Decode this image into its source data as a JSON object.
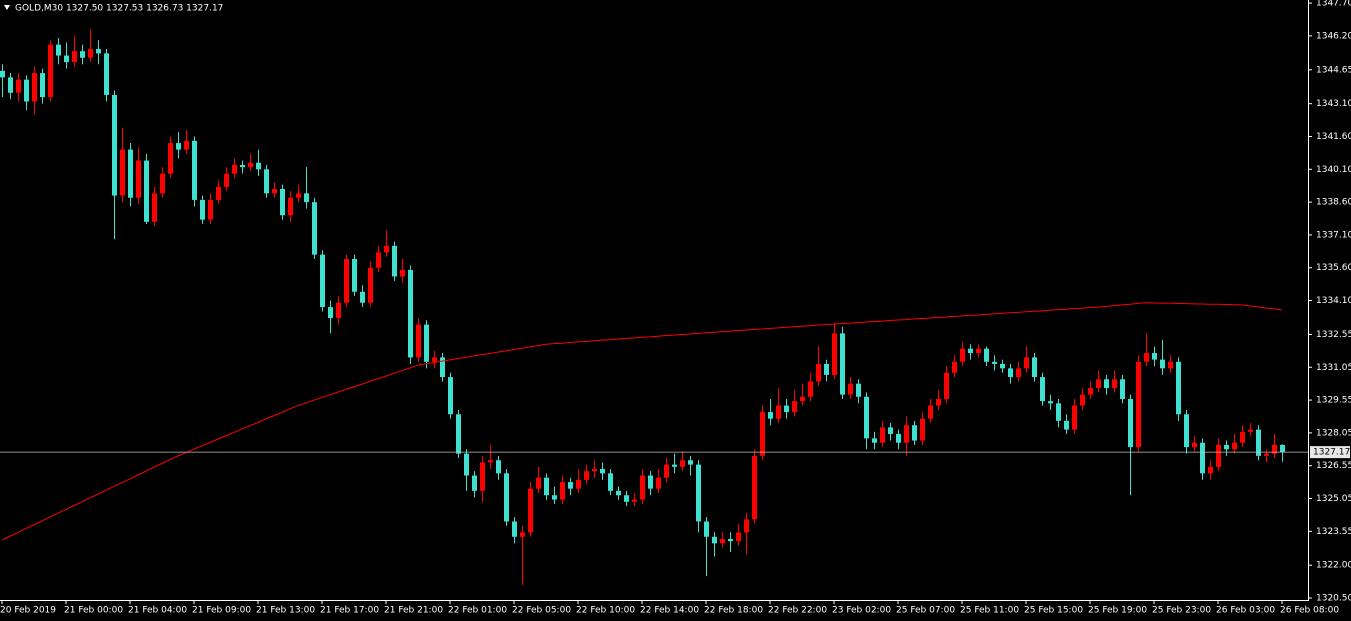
{
  "chart_data": {
    "type": "candlestick",
    "title": "GOLD,M30 1327.50 1327.53 1326.73 1327.17",
    "up_color": "#ff0000",
    "down_color": "#40e0d0",
    "ma_color": "#ff0000",
    "grid": false,
    "ylim": [
      1320.41,
      1347.84
    ],
    "yticks": [
      {
        "value": 1347.7,
        "label": "1347.70"
      },
      {
        "value": 1346.2,
        "label": "1346.20"
      },
      {
        "value": 1344.65,
        "label": "1344.65"
      },
      {
        "value": 1343.1,
        "label": "1343.10"
      },
      {
        "value": 1341.6,
        "label": "1341.60"
      },
      {
        "value": 1340.1,
        "label": "1340.10"
      },
      {
        "value": 1338.6,
        "label": "1338.60"
      },
      {
        "value": 1337.1,
        "label": "1337.10"
      },
      {
        "value": 1335.6,
        "label": "1335.60"
      },
      {
        "value": 1334.1,
        "label": "1334.10"
      },
      {
        "value": 1332.55,
        "label": "1332.55"
      },
      {
        "value": 1331.05,
        "label": "1331.05"
      },
      {
        "value": 1329.55,
        "label": "1329.55"
      },
      {
        "value": 1328.05,
        "label": "1328.05"
      },
      {
        "value": 1326.55,
        "label": "1326.55"
      },
      {
        "value": 1325.05,
        "label": "1325.05"
      },
      {
        "value": 1323.55,
        "label": "1323.55"
      },
      {
        "value": 1322.0,
        "label": "1322.00"
      },
      {
        "value": 1320.5,
        "label": "1320.50"
      }
    ],
    "last_price": 1327.17,
    "categories": [
      "20 Feb 2019",
      null,
      null,
      null,
      null,
      null,
      null,
      null,
      "21 Feb 00:00",
      null,
      null,
      null,
      null,
      null,
      null,
      null,
      "21 Feb 04:00",
      null,
      null,
      null,
      null,
      null,
      null,
      null,
      "21 Feb 09:00",
      null,
      null,
      null,
      null,
      null,
      null,
      null,
      "21 Feb 13:00",
      null,
      null,
      null,
      null,
      null,
      null,
      null,
      "21 Feb 17:00",
      null,
      null,
      null,
      null,
      null,
      null,
      null,
      "21 Feb 21:00",
      null,
      null,
      null,
      null,
      null,
      null,
      null,
      "22 Feb 01:00",
      null,
      null,
      null,
      null,
      null,
      null,
      null,
      "22 Feb 05:00",
      null,
      null,
      null,
      null,
      null,
      null,
      null,
      "22 Feb 10:00",
      null,
      null,
      null,
      null,
      null,
      null,
      null,
      "22 Feb 14:00",
      null,
      null,
      null,
      null,
      null,
      null,
      null,
      "22 Feb 18:00",
      null,
      null,
      null,
      null,
      null,
      null,
      null,
      "22 Feb 22:00",
      null,
      null,
      null,
      null,
      null,
      null,
      null,
      "23 Feb 02:00",
      null,
      null,
      null,
      null,
      null,
      null,
      null,
      "25 Feb 07:00",
      null,
      null,
      null,
      null,
      null,
      null,
      null,
      "25 Feb 11:00",
      null,
      null,
      null,
      null,
      null,
      null,
      null,
      "25 Feb 15:00",
      null,
      null,
      null,
      null,
      null,
      null,
      null,
      "25 Feb 19:00",
      null,
      null,
      null,
      null,
      null,
      null,
      null,
      "25 Feb 23:00",
      null,
      null,
      null,
      null,
      null,
      null,
      null,
      "26 Feb 03:00",
      null,
      null,
      null,
      null,
      null,
      null,
      null,
      "26 Feb 08:00"
    ],
    "ohlc": [
      [
        1344.6,
        1344.9,
        1343.4,
        1344.3
      ],
      [
        1344.3,
        1344.5,
        1343.3,
        1343.6
      ],
      [
        1343.6,
        1344.5,
        1343.2,
        1344.2
      ],
      [
        1344.2,
        1344.4,
        1342.8,
        1343.2
      ],
      [
        1343.2,
        1344.8,
        1342.6,
        1344.5
      ],
      [
        1344.5,
        1344.7,
        1343.1,
        1343.4
      ],
      [
        1343.4,
        1346.0,
        1343.2,
        1345.8
      ],
      [
        1345.8,
        1346.1,
        1344.9,
        1345.3
      ],
      [
        1345.3,
        1345.9,
        1344.7,
        1345.0
      ],
      [
        1345.0,
        1346.2,
        1344.8,
        1345.5
      ],
      [
        1345.5,
        1345.8,
        1344.9,
        1345.2
      ],
      [
        1345.2,
        1346.5,
        1345.0,
        1345.6
      ],
      [
        1345.6,
        1346.0,
        1344.9,
        1345.4
      ],
      [
        1345.4,
        1345.6,
        1343.2,
        1343.5
      ],
      [
        1343.5,
        1343.7,
        1336.9,
        1338.9
      ],
      [
        1338.9,
        1342.0,
        1338.6,
        1341.0
      ],
      [
        1341.0,
        1341.3,
        1338.4,
        1338.8
      ],
      [
        1338.8,
        1341.1,
        1338.5,
        1340.5
      ],
      [
        1340.5,
        1340.8,
        1337.6,
        1337.7
      ],
      [
        1337.7,
        1339.3,
        1337.5,
        1339.0
      ],
      [
        1339.0,
        1340.2,
        1338.8,
        1339.9
      ],
      [
        1339.9,
        1341.6,
        1339.7,
        1341.3
      ],
      [
        1341.3,
        1341.8,
        1340.6,
        1341.0
      ],
      [
        1341.0,
        1341.9,
        1340.8,
        1341.4
      ],
      [
        1341.4,
        1341.6,
        1338.4,
        1338.7
      ],
      [
        1338.7,
        1338.9,
        1337.6,
        1337.8
      ],
      [
        1337.8,
        1339.0,
        1337.6,
        1338.7
      ],
      [
        1338.7,
        1339.6,
        1338.5,
        1339.3
      ],
      [
        1339.3,
        1340.2,
        1339.1,
        1339.9
      ],
      [
        1339.9,
        1340.6,
        1339.7,
        1340.3
      ],
      [
        1340.3,
        1340.5,
        1339.9,
        1340.2
      ],
      [
        1340.2,
        1340.8,
        1340.0,
        1340.4
      ],
      [
        1340.4,
        1341.0,
        1339.8,
        1340.1
      ],
      [
        1340.1,
        1340.3,
        1338.8,
        1339.0
      ],
      [
        1339.0,
        1339.5,
        1338.8,
        1339.2
      ],
      [
        1339.2,
        1339.4,
        1337.8,
        1338.0
      ],
      [
        1338.0,
        1339.1,
        1337.7,
        1338.8
      ],
      [
        1338.8,
        1339.4,
        1338.6,
        1339.0
      ],
      [
        1339.0,
        1340.2,
        1338.3,
        1338.6
      ],
      [
        1338.6,
        1338.8,
        1336.0,
        1336.2
      ],
      [
        1336.2,
        1336.4,
        1333.6,
        1333.8
      ],
      [
        1333.8,
        1334.1,
        1332.6,
        1333.3
      ],
      [
        1333.3,
        1334.3,
        1333.0,
        1334.0
      ],
      [
        1334.0,
        1336.2,
        1333.8,
        1336.0
      ],
      [
        1336.0,
        1336.2,
        1334.3,
        1334.5
      ],
      [
        1334.5,
        1334.8,
        1333.8,
        1334.0
      ],
      [
        1334.0,
        1335.9,
        1333.8,
        1335.6
      ],
      [
        1335.6,
        1336.6,
        1335.4,
        1336.3
      ],
      [
        1336.3,
        1337.3,
        1336.1,
        1336.6
      ],
      [
        1336.6,
        1336.8,
        1335.0,
        1335.2
      ],
      [
        1335.2,
        1336.0,
        1334.9,
        1335.5
      ],
      [
        1335.5,
        1335.7,
        1331.2,
        1331.5
      ],
      [
        1331.5,
        1333.3,
        1331.3,
        1333.0
      ],
      [
        1333.0,
        1333.2,
        1331.0,
        1331.3
      ],
      [
        1331.3,
        1331.8,
        1331.0,
        1331.5
      ],
      [
        1331.5,
        1331.7,
        1330.4,
        1330.6
      ],
      [
        1330.6,
        1330.8,
        1328.7,
        1328.9
      ],
      [
        1328.9,
        1329.1,
        1326.9,
        1327.1
      ],
      [
        1327.1,
        1327.3,
        1325.4,
        1326.1
      ],
      [
        1326.1,
        1326.3,
        1325.1,
        1325.4
      ],
      [
        1325.4,
        1327.0,
        1324.9,
        1326.7
      ],
      [
        1326.7,
        1327.5,
        1326.4,
        1326.8
      ],
      [
        1326.8,
        1327.0,
        1325.9,
        1326.2
      ],
      [
        1326.2,
        1326.4,
        1323.8,
        1324.0
      ],
      [
        1324.0,
        1324.2,
        1323.0,
        1323.3
      ],
      [
        1323.3,
        1323.8,
        1321.1,
        1323.5
      ],
      [
        1323.5,
        1325.8,
        1323.3,
        1325.5
      ],
      [
        1325.5,
        1326.5,
        1325.3,
        1326.0
      ],
      [
        1326.0,
        1326.2,
        1325.0,
        1325.2
      ],
      [
        1325.2,
        1325.6,
        1324.8,
        1325.0
      ],
      [
        1325.0,
        1326.1,
        1324.8,
        1325.8
      ],
      [
        1325.8,
        1326.0,
        1325.2,
        1325.5
      ],
      [
        1325.5,
        1326.4,
        1325.3,
        1325.9
      ],
      [
        1325.9,
        1326.6,
        1325.7,
        1326.3
      ],
      [
        1326.3,
        1326.8,
        1326.0,
        1326.4
      ],
      [
        1326.4,
        1326.7,
        1325.9,
        1326.2
      ],
      [
        1326.2,
        1326.4,
        1325.2,
        1325.4
      ],
      [
        1325.4,
        1325.6,
        1325.0,
        1325.2
      ],
      [
        1325.2,
        1325.4,
        1324.7,
        1324.9
      ],
      [
        1324.9,
        1325.3,
        1324.7,
        1325.0
      ],
      [
        1325.0,
        1326.4,
        1324.8,
        1326.1
      ],
      [
        1326.1,
        1326.3,
        1325.2,
        1325.5
      ],
      [
        1325.5,
        1326.4,
        1325.3,
        1326.0
      ],
      [
        1326.0,
        1326.9,
        1325.8,
        1326.6
      ],
      [
        1326.6,
        1327.1,
        1326.2,
        1326.5
      ],
      [
        1326.5,
        1327.2,
        1326.3,
        1326.8
      ],
      [
        1326.8,
        1327.0,
        1326.1,
        1326.6
      ],
      [
        1326.6,
        1326.8,
        1323.5,
        1324.0
      ],
      [
        1324.0,
        1324.2,
        1321.5,
        1323.3
      ],
      [
        1323.3,
        1323.5,
        1322.4,
        1323.0
      ],
      [
        1323.0,
        1323.5,
        1322.8,
        1323.2
      ],
      [
        1323.2,
        1323.5,
        1322.6,
        1323.1
      ],
      [
        1323.1,
        1323.9,
        1322.9,
        1323.5
      ],
      [
        1323.5,
        1324.4,
        1322.5,
        1324.1
      ],
      [
        1324.1,
        1327.3,
        1323.9,
        1327.0
      ],
      [
        1327.0,
        1329.3,
        1326.8,
        1329.0
      ],
      [
        1329.0,
        1329.6,
        1328.4,
        1328.7
      ],
      [
        1328.7,
        1330.1,
        1328.5,
        1329.3
      ],
      [
        1329.3,
        1329.6,
        1328.7,
        1329.0
      ],
      [
        1329.0,
        1330.0,
        1328.8,
        1329.5
      ],
      [
        1329.5,
        1330.3,
        1329.3,
        1329.7
      ],
      [
        1329.7,
        1330.8,
        1329.5,
        1330.4
      ],
      [
        1330.4,
        1332.0,
        1330.2,
        1331.2
      ],
      [
        1331.2,
        1331.4,
        1330.4,
        1330.7
      ],
      [
        1330.7,
        1333.1,
        1330.5,
        1332.6
      ],
      [
        1332.6,
        1332.9,
        1329.6,
        1329.8
      ],
      [
        1329.8,
        1330.6,
        1329.6,
        1330.3
      ],
      [
        1330.3,
        1330.5,
        1329.4,
        1329.7
      ],
      [
        1329.7,
        1329.9,
        1327.3,
        1327.8
      ],
      [
        1327.8,
        1328.1,
        1327.3,
        1327.6
      ],
      [
        1327.6,
        1328.6,
        1327.4,
        1328.3
      ],
      [
        1328.3,
        1328.5,
        1327.7,
        1328.0
      ],
      [
        1328.0,
        1328.2,
        1327.3,
        1327.6
      ],
      [
        1327.6,
        1328.8,
        1327.0,
        1328.4
      ],
      [
        1328.4,
        1328.6,
        1327.5,
        1327.7
      ],
      [
        1327.7,
        1329.0,
        1327.5,
        1328.7
      ],
      [
        1328.7,
        1329.6,
        1328.5,
        1329.3
      ],
      [
        1329.3,
        1330.0,
        1329.1,
        1329.6
      ],
      [
        1329.6,
        1331.1,
        1329.4,
        1330.8
      ],
      [
        1330.8,
        1331.6,
        1330.6,
        1331.3
      ],
      [
        1331.3,
        1332.2,
        1331.1,
        1331.9
      ],
      [
        1331.9,
        1332.1,
        1331.4,
        1331.7
      ],
      [
        1331.7,
        1332.1,
        1331.5,
        1331.9
      ],
      [
        1331.9,
        1332.0,
        1331.1,
        1331.3
      ],
      [
        1331.3,
        1331.6,
        1330.9,
        1331.2
      ],
      [
        1331.2,
        1331.4,
        1330.8,
        1331.0
      ],
      [
        1331.0,
        1331.2,
        1330.3,
        1330.6
      ],
      [
        1330.6,
        1331.3,
        1330.4,
        1331.0
      ],
      [
        1331.0,
        1332.0,
        1330.8,
        1331.5
      ],
      [
        1331.5,
        1331.7,
        1330.4,
        1330.6
      ],
      [
        1330.6,
        1330.8,
        1329.3,
        1329.5
      ],
      [
        1329.5,
        1329.8,
        1329.1,
        1329.4
      ],
      [
        1329.4,
        1329.6,
        1328.3,
        1328.6
      ],
      [
        1328.6,
        1328.9,
        1328.0,
        1328.2
      ],
      [
        1328.2,
        1329.6,
        1328.0,
        1329.3
      ],
      [
        1329.3,
        1330.1,
        1329.1,
        1329.8
      ],
      [
        1329.8,
        1330.4,
        1329.6,
        1330.1
      ],
      [
        1330.1,
        1330.9,
        1329.9,
        1330.5
      ],
      [
        1330.5,
        1330.7,
        1329.8,
        1330.1
      ],
      [
        1330.1,
        1330.9,
        1329.9,
        1330.5
      ],
      [
        1330.5,
        1330.7,
        1329.4,
        1329.6
      ],
      [
        1329.6,
        1329.8,
        1325.2,
        1327.4
      ],
      [
        1327.4,
        1331.6,
        1327.2,
        1331.3
      ],
      [
        1331.3,
        1332.6,
        1331.1,
        1331.7
      ],
      [
        1331.7,
        1332.0,
        1331.1,
        1331.4
      ],
      [
        1331.4,
        1332.3,
        1330.7,
        1331.0
      ],
      [
        1331.0,
        1331.6,
        1330.8,
        1331.3
      ],
      [
        1331.3,
        1331.5,
        1328.6,
        1328.9
      ],
      [
        1328.9,
        1329.1,
        1327.1,
        1327.4
      ],
      [
        1327.4,
        1327.9,
        1327.2,
        1327.6
      ],
      [
        1327.6,
        1327.8,
        1325.9,
        1326.2
      ],
      [
        1326.2,
        1326.8,
        1325.9,
        1326.5
      ],
      [
        1326.5,
        1327.8,
        1326.3,
        1327.5
      ],
      [
        1327.5,
        1327.7,
        1327.0,
        1327.3
      ],
      [
        1327.3,
        1328.0,
        1327.1,
        1327.6
      ],
      [
        1327.6,
        1328.4,
        1327.4,
        1328.1
      ],
      [
        1328.1,
        1328.5,
        1327.9,
        1328.2
      ],
      [
        1328.2,
        1328.4,
        1326.8,
        1327.0
      ],
      [
        1327.0,
        1327.3,
        1326.7,
        1327.1
      ],
      [
        1327.1,
        1328.0,
        1326.9,
        1327.5
      ],
      [
        1327.5,
        1327.53,
        1326.73,
        1327.17
      ]
    ],
    "ma": [
      1323.15,
      1323.33,
      1323.5,
      1323.68,
      1323.85,
      1324.03,
      1324.2,
      1324.38,
      1324.55,
      1324.73,
      1324.9,
      1325.08,
      1325.25,
      1325.43,
      1325.6,
      1325.78,
      1325.95,
      1326.13,
      1326.3,
      1326.48,
      1326.65,
      1326.83,
      1327.0,
      1327.15,
      1327.31,
      1327.46,
      1327.61,
      1327.77,
      1327.92,
      1328.07,
      1328.23,
      1328.38,
      1328.53,
      1328.69,
      1328.84,
      1328.99,
      1329.15,
      1329.3,
      1329.42,
      1329.55,
      1329.67,
      1329.79,
      1329.92,
      1330.04,
      1330.16,
      1330.28,
      1330.41,
      1330.53,
      1330.65,
      1330.78,
      1330.9,
      1331.02,
      1331.15,
      1331.21,
      1331.27,
      1331.33,
      1331.39,
      1331.45,
      1331.51,
      1331.57,
      1331.63,
      1331.68,
      1331.74,
      1331.8,
      1331.86,
      1331.92,
      1331.98,
      1332.04,
      1332.1,
      1332.13,
      1332.15,
      1332.18,
      1332.21,
      1332.23,
      1332.26,
      1332.29,
      1332.31,
      1332.34,
      1332.37,
      1332.39,
      1332.42,
      1332.44,
      1332.47,
      1332.5,
      1332.52,
      1332.55,
      1332.57,
      1332.6,
      1332.63,
      1332.65,
      1332.68,
      1332.7,
      1332.73,
      1332.75,
      1332.78,
      1332.8,
      1332.83,
      1332.85,
      1332.88,
      1332.9,
      1332.93,
      1332.95,
      1332.98,
      1333.0,
      1333.02,
      1333.05,
      1333.07,
      1333.09,
      1333.12,
      1333.14,
      1333.16,
      1333.19,
      1333.21,
      1333.23,
      1333.26,
      1333.28,
      1333.3,
      1333.33,
      1333.35,
      1333.37,
      1333.4,
      1333.42,
      1333.44,
      1333.47,
      1333.49,
      1333.52,
      1333.54,
      1333.56,
      1333.59,
      1333.61,
      1333.63,
      1333.66,
      1333.68,
      1333.71,
      1333.73,
      1333.75,
      1333.78,
      1333.8,
      1333.83,
      1333.87,
      1333.9,
      1333.93,
      1333.97,
      1334.0,
      1333.99,
      1333.98,
      1333.98,
      1333.97,
      1333.96,
      1333.95,
      1333.94,
      1333.93,
      1333.93,
      1333.92,
      1333.91,
      1333.9,
      1333.85,
      1333.81,
      1333.76,
      1333.72,
      1333.67
    ]
  }
}
